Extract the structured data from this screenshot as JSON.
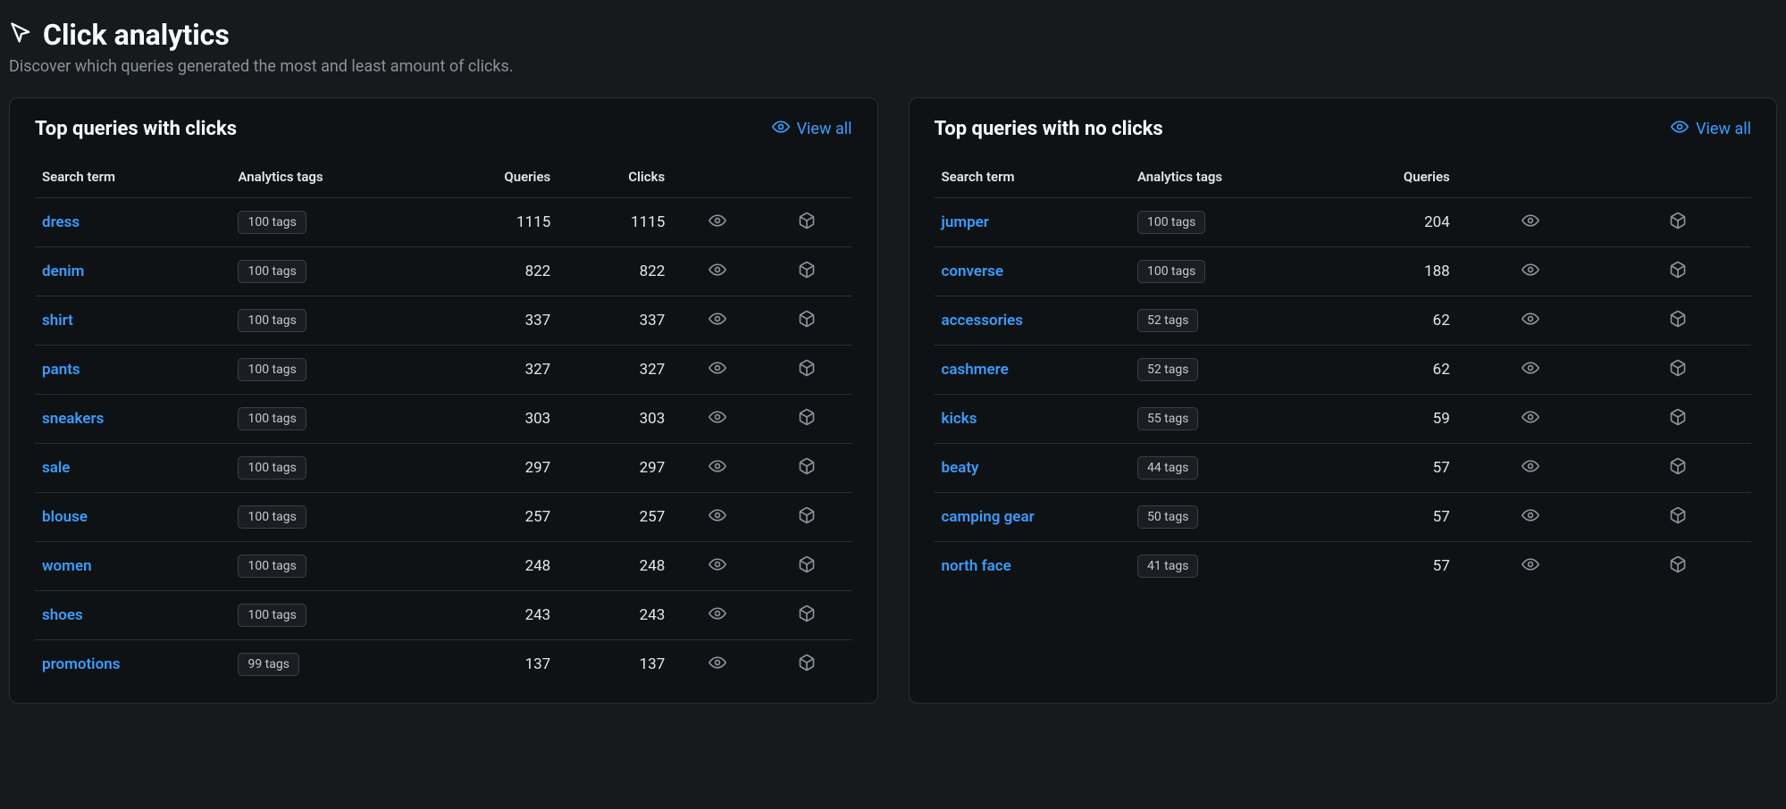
{
  "header": {
    "title": "Click analytics",
    "subtitle": "Discover which queries generated the most and least amount of clicks."
  },
  "viewAllLabel": "View all",
  "columns": {
    "searchTerm": "Search term",
    "analyticsTags": "Analytics tags",
    "queries": "Queries",
    "clicks": "Clicks"
  },
  "panels": {
    "withClicks": {
      "title": "Top queries with clicks",
      "hasClicksColumn": true,
      "rows": [
        {
          "term": "dress",
          "tags": "100 tags",
          "queries": "1115",
          "clicks": "1115"
        },
        {
          "term": "denim",
          "tags": "100 tags",
          "queries": "822",
          "clicks": "822"
        },
        {
          "term": "shirt",
          "tags": "100 tags",
          "queries": "337",
          "clicks": "337"
        },
        {
          "term": "pants",
          "tags": "100 tags",
          "queries": "327",
          "clicks": "327"
        },
        {
          "term": "sneakers",
          "tags": "100 tags",
          "queries": "303",
          "clicks": "303"
        },
        {
          "term": "sale",
          "tags": "100 tags",
          "queries": "297",
          "clicks": "297"
        },
        {
          "term": "blouse",
          "tags": "100 tags",
          "queries": "257",
          "clicks": "257"
        },
        {
          "term": "women",
          "tags": "100 tags",
          "queries": "248",
          "clicks": "248"
        },
        {
          "term": "shoes",
          "tags": "100 tags",
          "queries": "243",
          "clicks": "243"
        },
        {
          "term": "promotions",
          "tags": "99 tags",
          "queries": "137",
          "clicks": "137"
        }
      ]
    },
    "noClicks": {
      "title": "Top queries with no clicks",
      "hasClicksColumn": false,
      "rows": [
        {
          "term": "jumper",
          "tags": "100 tags",
          "queries": "204"
        },
        {
          "term": "converse",
          "tags": "100 tags",
          "queries": "188"
        },
        {
          "term": "accessories",
          "tags": "52 tags",
          "queries": "62"
        },
        {
          "term": "cashmere",
          "tags": "52 tags",
          "queries": "62"
        },
        {
          "term": "kicks",
          "tags": "55 tags",
          "queries": "59"
        },
        {
          "term": "beaty",
          "tags": "44 tags",
          "queries": "57"
        },
        {
          "term": "camping gear",
          "tags": "50 tags",
          "queries": "57"
        },
        {
          "term": "north face",
          "tags": "41 tags",
          "queries": "57"
        }
      ]
    }
  },
  "style": {
    "bg": "#161a1d",
    "panelBg": "#0f1214",
    "border": "#2a2e33",
    "text": "#e3e6e8",
    "muted": "#8c929a",
    "link": "#3b9cff"
  }
}
